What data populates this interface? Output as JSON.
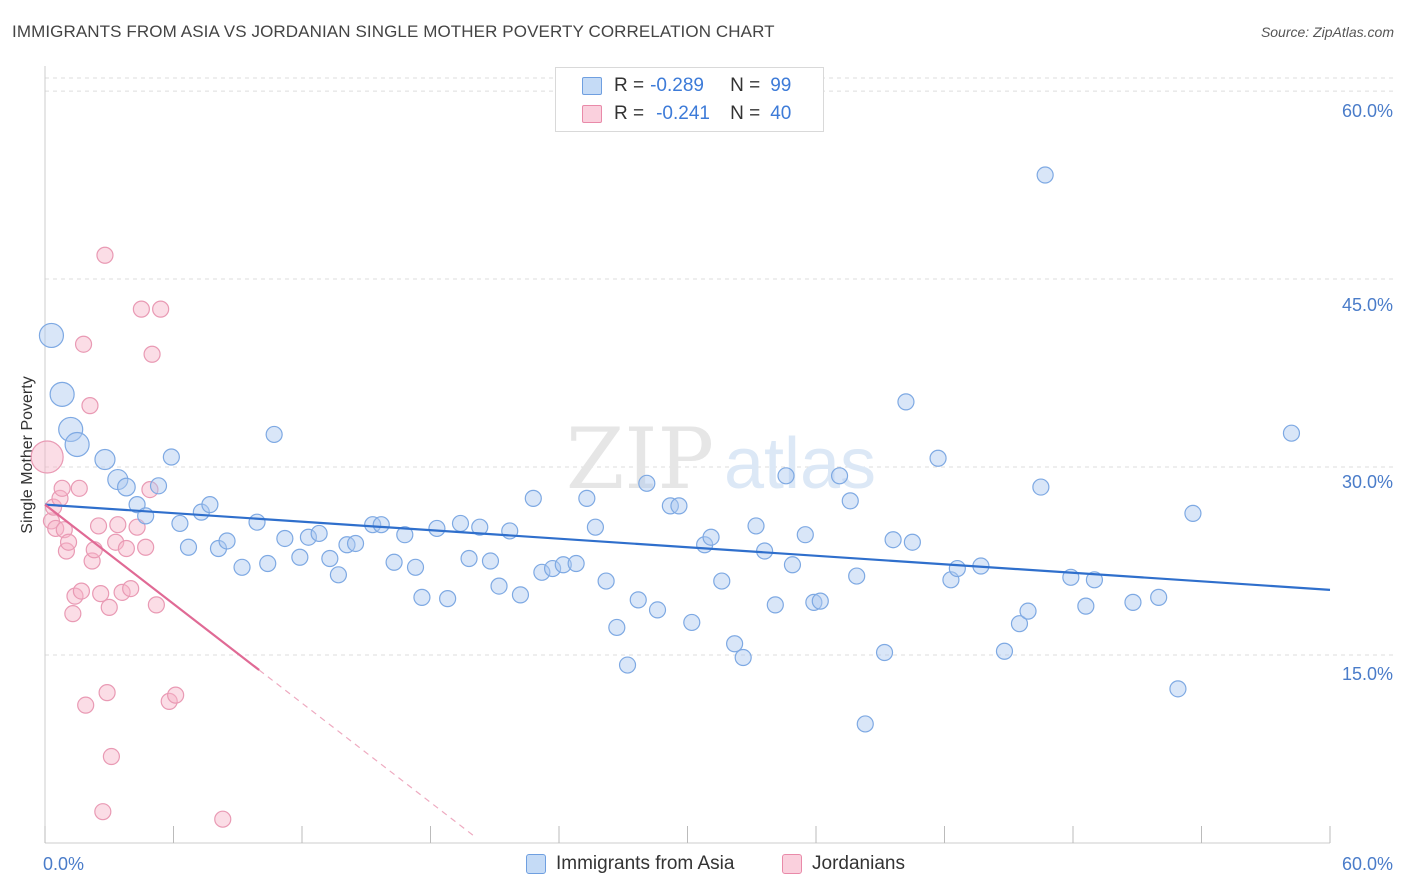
{
  "header": {
    "title": "IMMIGRANTS FROM ASIA VS JORDANIAN SINGLE MOTHER POVERTY CORRELATION CHART",
    "source": "Source: ZipAtlas.com"
  },
  "watermark": {
    "zip": "ZIP",
    "atlas": "atlas"
  },
  "legend": {
    "rows": [
      {
        "r_label": "R =",
        "r_value": "-0.289",
        "n_label": "N =",
        "n_value": "99",
        "color": "#a9c8f0",
        "border": "#6f9fe0"
      },
      {
        "r_label": "R =",
        "r_value": "-0.241",
        "n_label": "N =",
        "n_value": "40",
        "color": "#f7bfd0",
        "border": "#e98aa9"
      }
    ]
  },
  "bottom_legend": [
    {
      "label": "Immigrants from Asia",
      "color": "#c5dbf6",
      "border": "#6f9fe0"
    },
    {
      "label": "Jordanians",
      "color": "#fad0dd",
      "border": "#e98aa9"
    }
  ],
  "colors": {
    "blue_fill": "rgba(170,200,240,0.45)",
    "blue_stroke": "#7ea9e3",
    "blue_line": "#2f6fcc",
    "pink_fill": "rgba(246,180,200,0.45)",
    "pink_stroke": "#e99ab4",
    "pink_line": "#e06a95",
    "grid": "#dddddd",
    "tick_text": "#4a7cc9"
  },
  "chart_data": {
    "type": "scatter",
    "title": "IMMIGRANTS FROM ASIA VS JORDANIAN SINGLE MOTHER POVERTY CORRELATION CHART",
    "xlabel": "",
    "ylabel": "Single Mother Poverty",
    "xlim": [
      0,
      60
    ],
    "ylim": [
      0,
      62
    ],
    "x_tick_labels": [
      "0.0%",
      "60.0%"
    ],
    "y_ticks": [
      15,
      30,
      45,
      60
    ],
    "y_tick_labels": [
      "15.0%",
      "30.0%",
      "45.0%",
      "60.0%"
    ],
    "grid": true,
    "series": [
      {
        "name": "Immigrants from Asia",
        "r": -0.289,
        "n": 99,
        "trend": {
          "x": [
            0,
            60
          ],
          "y": [
            27.0,
            20.2
          ]
        },
        "points": [
          [
            0.3,
            40.5,
            3
          ],
          [
            0.8,
            35.8,
            3
          ],
          [
            1.2,
            33.0,
            3
          ],
          [
            1.5,
            31.8,
            3
          ],
          [
            2.8,
            30.6,
            2.5
          ],
          [
            3.4,
            29.0,
            2.5
          ],
          [
            3.8,
            28.4,
            2.2
          ],
          [
            4.3,
            27.0,
            2
          ],
          [
            4.7,
            26.1,
            2
          ],
          [
            5.3,
            28.5,
            2
          ],
          [
            5.9,
            30.8,
            2
          ],
          [
            6.3,
            25.5,
            2
          ],
          [
            6.7,
            23.6,
            2
          ],
          [
            7.3,
            26.4,
            2
          ],
          [
            7.7,
            27.0,
            2
          ],
          [
            8.1,
            23.5,
            2
          ],
          [
            8.5,
            24.1,
            2
          ],
          [
            9.2,
            22.0,
            2
          ],
          [
            9.9,
            25.6,
            2
          ],
          [
            10.4,
            22.3,
            2
          ],
          [
            10.7,
            32.6,
            2
          ],
          [
            11.2,
            24.3,
            2
          ],
          [
            11.9,
            22.8,
            2
          ],
          [
            12.3,
            24.4,
            2
          ],
          [
            12.8,
            24.7,
            2
          ],
          [
            13.3,
            22.7,
            2
          ],
          [
            13.7,
            21.4,
            2
          ],
          [
            14.1,
            23.8,
            2
          ],
          [
            14.5,
            23.9,
            2
          ],
          [
            15.3,
            25.4,
            2
          ],
          [
            15.7,
            25.4,
            2
          ],
          [
            16.3,
            22.4,
            2
          ],
          [
            16.8,
            24.6,
            2
          ],
          [
            17.3,
            22.0,
            2
          ],
          [
            17.6,
            19.6,
            2
          ],
          [
            18.3,
            25.1,
            2
          ],
          [
            18.8,
            19.5,
            2
          ],
          [
            19.4,
            25.5,
            2
          ],
          [
            19.8,
            22.7,
            2
          ],
          [
            20.3,
            25.2,
            2
          ],
          [
            20.8,
            22.5,
            2
          ],
          [
            21.2,
            20.5,
            2
          ],
          [
            21.7,
            24.9,
            2
          ],
          [
            22.2,
            19.8,
            2
          ],
          [
            22.8,
            27.5,
            2
          ],
          [
            23.2,
            21.6,
            2
          ],
          [
            23.7,
            21.9,
            2
          ],
          [
            24.2,
            22.2,
            2
          ],
          [
            24.8,
            22.3,
            2
          ],
          [
            25.3,
            27.5,
            2
          ],
          [
            25.7,
            25.2,
            2
          ],
          [
            26.2,
            20.9,
            2
          ],
          [
            26.7,
            17.2,
            2
          ],
          [
            27.2,
            14.2,
            2
          ],
          [
            27.7,
            19.4,
            2
          ],
          [
            28.1,
            28.7,
            2
          ],
          [
            28.6,
            18.6,
            2
          ],
          [
            29.2,
            26.9,
            2
          ],
          [
            29.6,
            26.9,
            2
          ],
          [
            30.2,
            17.6,
            2
          ],
          [
            30.8,
            23.8,
            2
          ],
          [
            31.1,
            24.4,
            2
          ],
          [
            31.6,
            20.9,
            2
          ],
          [
            32.2,
            15.9,
            2
          ],
          [
            32.6,
            14.8,
            2
          ],
          [
            33.2,
            25.3,
            2
          ],
          [
            33.6,
            23.3,
            2
          ],
          [
            34.1,
            19.0,
            2
          ],
          [
            34.6,
            29.3,
            2
          ],
          [
            34.9,
            22.2,
            2
          ],
          [
            35.5,
            24.6,
            2
          ],
          [
            35.9,
            19.2,
            2
          ],
          [
            36.2,
            19.3,
            2
          ],
          [
            37.1,
            29.3,
            2
          ],
          [
            37.6,
            27.3,
            2
          ],
          [
            37.9,
            21.3,
            2
          ],
          [
            38.3,
            9.5,
            2
          ],
          [
            39.2,
            15.2,
            2
          ],
          [
            39.6,
            24.2,
            2
          ],
          [
            40.2,
            35.2,
            2
          ],
          [
            40.5,
            24.0,
            2
          ],
          [
            41.7,
            30.7,
            2
          ],
          [
            42.3,
            21.0,
            2
          ],
          [
            42.6,
            21.9,
            2
          ],
          [
            43.7,
            22.1,
            2
          ],
          [
            44.8,
            15.3,
            2
          ],
          [
            45.5,
            17.5,
            2
          ],
          [
            45.9,
            18.5,
            2
          ],
          [
            46.5,
            28.4,
            2
          ],
          [
            46.7,
            53.3,
            2
          ],
          [
            47.9,
            21.2,
            2
          ],
          [
            48.6,
            18.9,
            2
          ],
          [
            49.0,
            21.0,
            2
          ],
          [
            50.8,
            19.2,
            2
          ],
          [
            52.0,
            19.6,
            2
          ],
          [
            52.9,
            12.3,
            2
          ],
          [
            53.6,
            26.3,
            2
          ],
          [
            58.2,
            32.7,
            2
          ]
        ]
      },
      {
        "name": "Jordanians",
        "r": -0.241,
        "n": 40,
        "trend_solid": {
          "x": [
            0,
            10
          ],
          "y": [
            27.0,
            13.8
          ]
        },
        "trend_dashed": {
          "x": [
            10,
            20
          ],
          "y": [
            13.8,
            0.6
          ]
        },
        "points": [
          [
            0.1,
            30.8,
            4
          ],
          [
            0.3,
            25.7,
            2
          ],
          [
            0.4,
            26.8,
            2
          ],
          [
            0.5,
            25.1,
            2
          ],
          [
            0.7,
            27.5,
            2
          ],
          [
            0.8,
            28.3,
            2
          ],
          [
            0.9,
            25.0,
            2
          ],
          [
            1.0,
            23.3,
            2
          ],
          [
            1.1,
            24.0,
            2
          ],
          [
            1.3,
            18.3,
            2
          ],
          [
            1.4,
            19.7,
            2
          ],
          [
            1.6,
            28.3,
            2
          ],
          [
            1.7,
            20.1,
            2
          ],
          [
            1.8,
            39.8,
            2
          ],
          [
            1.9,
            11.0,
            2
          ],
          [
            2.1,
            34.9,
            2
          ],
          [
            2.2,
            22.5,
            2
          ],
          [
            2.3,
            23.4,
            2
          ],
          [
            2.5,
            25.3,
            2
          ],
          [
            2.6,
            19.9,
            2
          ],
          [
            2.7,
            2.5,
            2
          ],
          [
            2.8,
            46.9,
            2
          ],
          [
            2.9,
            12.0,
            2
          ],
          [
            3.0,
            18.8,
            2
          ],
          [
            3.1,
            6.9,
            2
          ],
          [
            3.3,
            24.0,
            2
          ],
          [
            3.4,
            25.4,
            2
          ],
          [
            3.6,
            20.0,
            2
          ],
          [
            3.8,
            23.5,
            2
          ],
          [
            4.0,
            20.3,
            2
          ],
          [
            4.3,
            25.2,
            2
          ],
          [
            4.5,
            42.6,
            2
          ],
          [
            4.7,
            23.6,
            2
          ],
          [
            4.9,
            28.2,
            2
          ],
          [
            5.0,
            39.0,
            2
          ],
          [
            5.2,
            19.0,
            2
          ],
          [
            5.4,
            42.6,
            2
          ],
          [
            5.8,
            11.3,
            2
          ],
          [
            6.1,
            11.8,
            2
          ],
          [
            8.3,
            1.9,
            2
          ]
        ]
      }
    ]
  }
}
